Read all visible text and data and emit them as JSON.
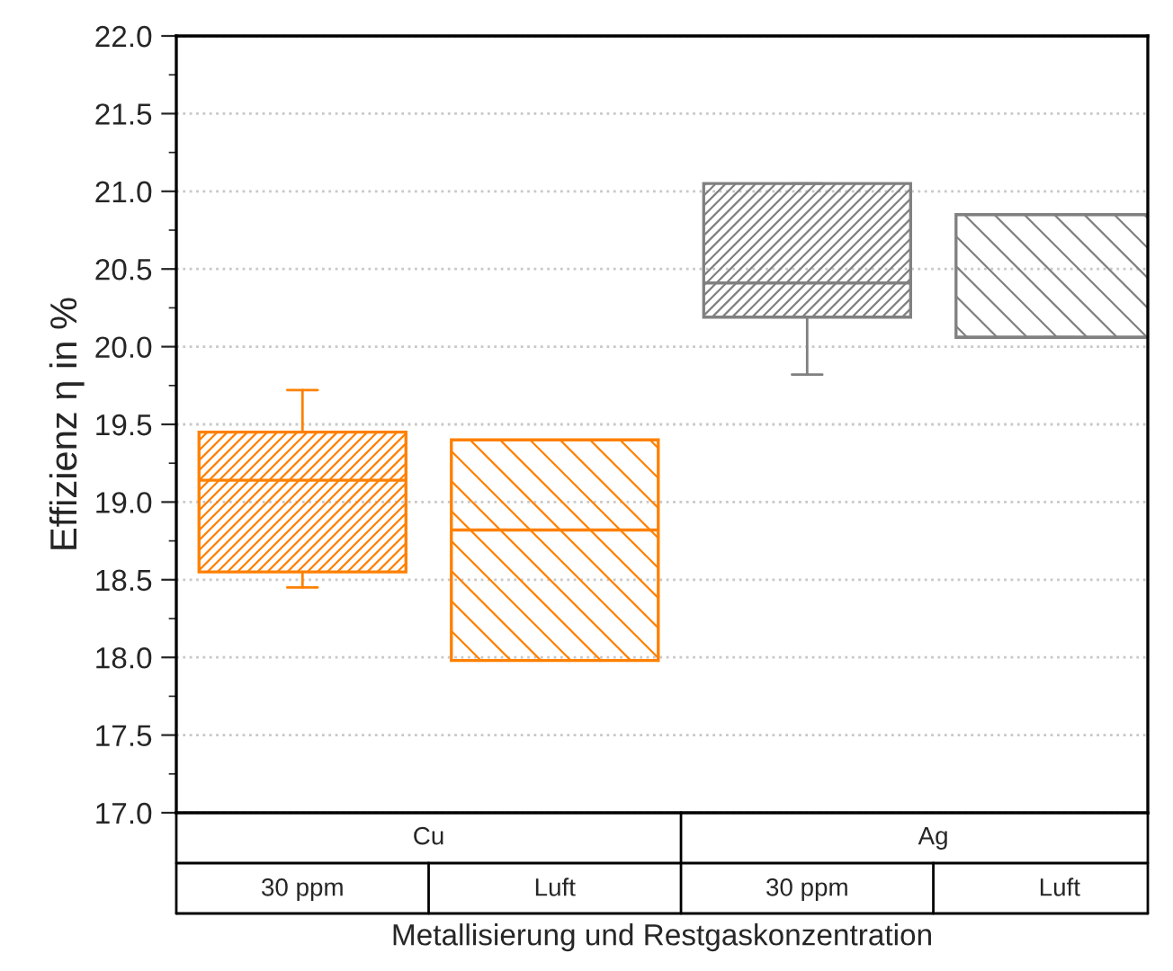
{
  "chart_data": {
    "type": "box",
    "xlabel": "Metallisierung und Restgaskonzentration",
    "ylabel": "Effizienz η in %",
    "categories": [
      "30 ppm",
      "Luft",
      "30 ppm",
      "Luft"
    ],
    "series": [
      {
        "color": "#ff8000",
        "boxes": [
          {
            "low": 18.45,
            "q1": 18.55,
            "median": 19.14,
            "q3": 19.45,
            "high": 19.72
          },
          {
            "low": 17.98,
            "q1": 17.98,
            "median": 18.82,
            "q3": 19.4,
            "high": 19.4
          },
          null,
          null
        ]
      },
      {
        "color": "#808080",
        "boxes": [
          null,
          null,
          {
            "low": 19.82,
            "q1": 20.19,
            "median": 20.41,
            "q3": 21.05,
            "high": 21.05
          },
          {
            "low": 20.06,
            "q1": 20.06,
            "median": 20.06,
            "q3": 20.85,
            "high": 20.85
          }
        ]
      }
    ],
    "ylim": [
      17.0,
      22.0
    ],
    "yticks": [
      {
        "value": 17.0,
        "label": "17.0"
      },
      {
        "value": 17.5,
        "label": "17.5"
      },
      {
        "value": 18.0,
        "label": "18.0"
      },
      {
        "value": 18.5,
        "label": "18.5"
      },
      {
        "value": 19.0,
        "label": "19.0"
      },
      {
        "value": 19.5,
        "label": "19.5"
      },
      {
        "value": 20.0,
        "label": "20.0"
      },
      {
        "value": 20.5,
        "label": "20.5"
      },
      {
        "value": 21.0,
        "label": "21.0"
      },
      {
        "value": 21.5,
        "label": "21.5"
      },
      {
        "value": 22.0,
        "label": "22.0"
      }
    ],
    "annotations": [
      "Cu",
      "Ag"
    ],
    "grid": "y",
    "legend": false
  }
}
